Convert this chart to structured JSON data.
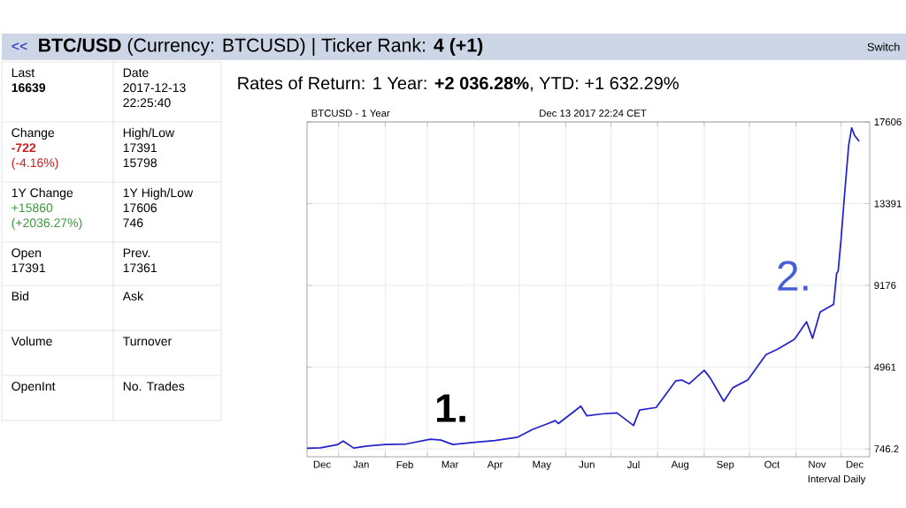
{
  "chart_data": [
    {
      "type": "other",
      "title": "**BTC/USD** (Currency: BTCUSD) | Ticker Rank: **4 (+1)**",
      "annotations": [
        "Last",
        "**16639**",
        "Date",
        "2017-12-13",
        "22:25:40",
        "Change",
        "**-722**",
        "(-4.16%)",
        "High/Low",
        "17391",
        "15798",
        "1Y Change",
        "+15860",
        "(+2036.27%)",
        "1Y High/Low",
        "17606",
        "746",
        "Open",
        "17391",
        "Prev.",
        "17361",
        "Bid",
        "Ask",
        "Volume",
        "Turnover",
        "OpenInt",
        "No. Trades",
        "Rates of Return: 1 Year: **+2 036.28%**, YTD: +1 632.29%",
        "<<",
        "Switch"
      ]
    },
    {
      "type": "line",
      "title": "BTCUSD - 1 Year",
      "subtitle": "Dec 13 2017 22:24 CET",
      "x": [
        "2016-12-11",
        "2016-12-20",
        "2016-12-31",
        "2017-01-04",
        "2017-01-11",
        "2017-01-20",
        "2017-02-01",
        "2017-02-15",
        "2017-03-03",
        "2017-03-10",
        "2017-03-18",
        "2017-03-31",
        "2017-04-15",
        "2017-04-30",
        "2017-05-10",
        "2017-05-20",
        "2017-05-25",
        "2017-05-27",
        "2017-06-11",
        "2017-06-15",
        "2017-06-25",
        "2017-07-05",
        "2017-07-16",
        "2017-07-20",
        "2017-07-31",
        "2017-08-05",
        "2017-08-13",
        "2017-08-17",
        "2017-08-22",
        "2017-09-01",
        "2017-09-05",
        "2017-09-14",
        "2017-09-20",
        "2017-09-30",
        "2017-10-12",
        "2017-10-20",
        "2017-10-31",
        "2017-11-08",
        "2017-11-12",
        "2017-11-17",
        "2017-11-26",
        "2017-11-28",
        "2017-11-29",
        "2017-12-01",
        "2017-12-03",
        "2017-12-06",
        "2017-12-08",
        "2017-12-10",
        "2017-12-13"
      ],
      "series": [
        {
          "color": "#2222cc",
          "values": [
            780,
            800,
            960,
            1150,
            790,
            890,
            970,
            1000,
            1250,
            1200,
            970,
            1070,
            1180,
            1350,
            1750,
            2050,
            2200,
            2050,
            2950,
            2450,
            2550,
            2600,
            1950,
            2750,
            2880,
            3400,
            4250,
            4300,
            4100,
            4800,
            4400,
            3200,
            3900,
            4300,
            5600,
            5900,
            6400,
            7300,
            6450,
            7800,
            8200,
            9800,
            9900,
            11600,
            13600,
            16400,
            17300,
            16900,
            16600
          ]
        }
      ],
      "xlim": [
        "2016-12-11",
        "2017-12-20"
      ],
      "xticks": [
        {
          "value": "2017-01-01",
          "label": null
        },
        {
          "value": "2017-02-01",
          "label": null
        },
        {
          "value": "2017-03-01",
          "label": null
        },
        {
          "value": "2017-04-01",
          "label": null
        },
        {
          "value": "2017-05-01",
          "label": null
        },
        {
          "value": "2017-06-01",
          "label": null
        },
        {
          "value": "2017-07-01",
          "label": null
        },
        {
          "value": "2017-08-01",
          "label": null
        },
        {
          "value": "2017-09-01",
          "label": null
        },
        {
          "value": "2017-10-01",
          "label": null
        },
        {
          "value": "2017-11-01",
          "label": null
        },
        {
          "value": "2017-12-01",
          "label": null
        },
        {
          "value": "2016-12-21",
          "label": "Dec"
        },
        {
          "value": "2017-01-16",
          "label": "Jan"
        },
        {
          "value": "2017-02-14",
          "label": "Feb"
        },
        {
          "value": "2017-03-16",
          "label": "Mar"
        },
        {
          "value": "2017-04-15",
          "label": "Apr"
        },
        {
          "value": "2017-05-16",
          "label": "May"
        },
        {
          "value": "2017-06-15",
          "label": "Jun"
        },
        {
          "value": "2017-07-16",
          "label": "Jul"
        },
        {
          "value": "2017-08-16",
          "label": "Aug"
        },
        {
          "value": "2017-09-15",
          "label": "Sep"
        },
        {
          "value": "2017-10-16",
          "label": "Oct"
        },
        {
          "value": "2017-11-15",
          "label": "Nov"
        },
        {
          "value": "2017-12-10",
          "label": "Dec"
        }
      ],
      "ylim": [
        340,
        17606
      ],
      "yticks": [
        746.2,
        4961,
        9176,
        13391,
        17606
      ],
      "grid": true,
      "marker": "none",
      "line_style": "solid",
      "annotations": [
        "1.",
        "2.",
        "Interval Daily"
      ]
    }
  ]
}
